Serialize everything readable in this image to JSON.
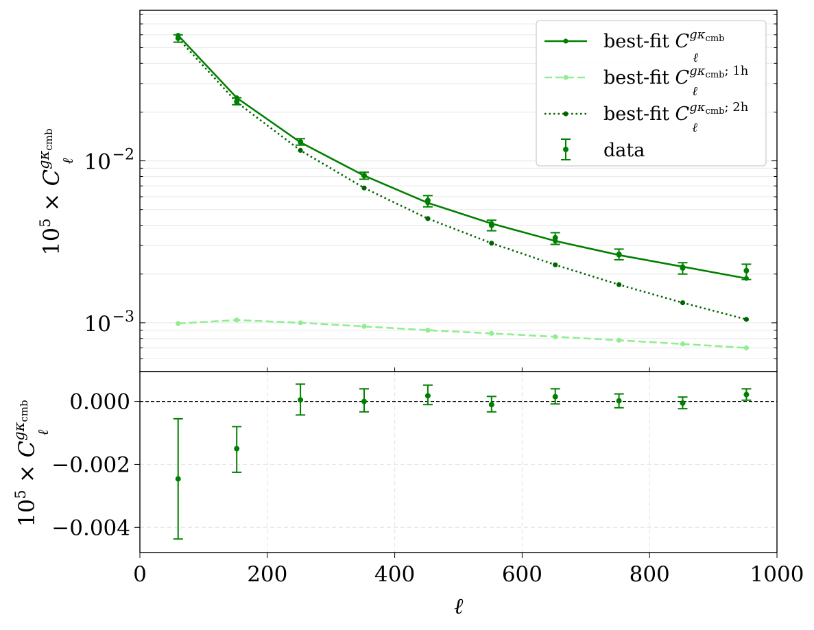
{
  "chart_data": [
    {
      "type": "line",
      "panel": "top",
      "yscale": "log",
      "ylim": [
        0.0005,
        0.085
      ],
      "xlim": [
        0,
        1000
      ],
      "ylabel": "10^5 × C_ℓ^{gκcmb}",
      "grid": "horizontal minor, light",
      "legend": "top-right",
      "yticks": [
        {
          "value": 0.01,
          "base": "10",
          "exp": "−2"
        },
        {
          "value": 0.001,
          "base": "10",
          "exp": "−3"
        }
      ],
      "x": [
        60,
        152,
        252,
        352,
        452,
        552,
        652,
        752,
        852,
        952
      ],
      "series": [
        {
          "name": "best-fit C_ℓ^{gκcmb}",
          "legend": {
            "prefix": "best-fit ",
            "sym": "C",
            "sub": "ℓ",
            "sup": "gκ",
            "supsub": "cmb",
            "tail": ""
          },
          "style": "solid",
          "color": "#008000",
          "values": [
            0.0595,
            0.0245,
            0.013,
            0.0081,
            0.0055,
            0.0041,
            0.0032,
            0.00262,
            0.00222,
            0.00188
          ]
        },
        {
          "name": "best-fit C_ℓ^{gκcmb; 1h}",
          "legend": {
            "prefix": "best-fit ",
            "sym": "C",
            "sub": "ℓ",
            "sup": "gκ",
            "supsub": "cmb",
            "tail": "; 1h"
          },
          "style": "dashed",
          "color": "#90ee90",
          "values": [
            0.00099,
            0.00104,
            0.001,
            0.00095,
            0.0009,
            0.00086,
            0.00082,
            0.00078,
            0.00074,
            0.0007
          ]
        },
        {
          "name": "best-fit C_ℓ^{gκcmb; 2h}",
          "legend": {
            "prefix": "best-fit ",
            "sym": "C",
            "sub": "ℓ",
            "sup": "gκ",
            "supsub": "cmb",
            "tail": "; 2h"
          },
          "style": "dotted",
          "color": "#006400",
          "values": [
            0.057,
            0.023,
            0.0116,
            0.0068,
            0.0044,
            0.0031,
            0.00228,
            0.00172,
            0.00133,
            0.00105
          ]
        },
        {
          "name": "data",
          "legend": {
            "prefix": "data",
            "sym": "",
            "sub": "",
            "sup": "",
            "supsub": "",
            "tail": ""
          },
          "style": "errorbar",
          "color": "#008000",
          "values": [
            0.0572,
            0.0232,
            0.0131,
            0.0081,
            0.0057,
            0.004,
            0.00335,
            0.00265,
            0.00218,
            0.0021
          ],
          "err_low": [
            0.054,
            0.0222,
            0.0125,
            0.0077,
            0.0052,
            0.0037,
            0.00305,
            0.00245,
            0.002,
            0.00185
          ],
          "err_high": [
            0.06,
            0.0245,
            0.0137,
            0.0085,
            0.0061,
            0.0043,
            0.0036,
            0.00285,
            0.00235,
            0.0023
          ]
        }
      ]
    },
    {
      "type": "scatter",
      "panel": "bottom",
      "ylim": [
        -0.0048,
        0.00095
      ],
      "xlim": [
        0,
        1000
      ],
      "xlabel": "ℓ",
      "ylabel": "10^5 × C_ℓ^{gκcmb}",
      "grid": "dashed, light",
      "reference_line": 0,
      "yticks": [
        {
          "value": 0,
          "label": "0.000"
        },
        {
          "value": -0.002,
          "label": "−0.002"
        },
        {
          "value": -0.004,
          "label": "−0.004"
        }
      ],
      "xticks": [
        0,
        200,
        400,
        600,
        800,
        1000
      ],
      "x": [
        60,
        152,
        252,
        352,
        452,
        552,
        652,
        752,
        852,
        952
      ],
      "series": [
        {
          "name": "",
          "color": "#008000",
          "values": [
            -0.00246,
            -0.0015,
            5e-05,
            0.0,
            0.00018,
            -0.0001,
            0.00015,
            2e-05,
            -5e-05,
            0.00022
          ],
          "err_low": [
            -0.00437,
            -0.00225,
            -0.00043,
            -0.00033,
            -0.0001,
            -0.00033,
            -8e-05,
            -0.0002,
            -0.00023,
            4e-05
          ],
          "err_high": [
            -0.00055,
            -0.0008,
            0.00055,
            0.0004,
            0.00052,
            0.00016,
            0.0004,
            0.00024,
            0.00014,
            0.0004
          ]
        }
      ]
    }
  ]
}
